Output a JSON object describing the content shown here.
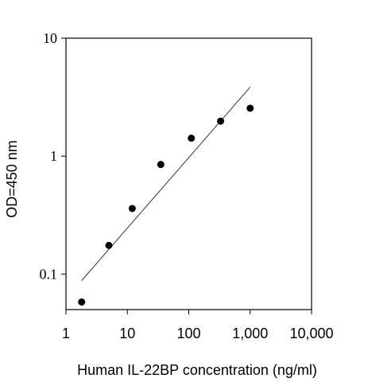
{
  "chart_data": {
    "type": "scatter",
    "title": "",
    "xlabel": "Human IL-22BP concentration (ng/ml)",
    "ylabel": "OD=450 nm",
    "xscale": "log",
    "yscale": "log",
    "xlim": [
      1,
      10000
    ],
    "ylim": [
      0.05,
      10
    ],
    "xticks": [
      1,
      10,
      100,
      1000,
      10000
    ],
    "xtick_labels": [
      "1",
      "10",
      "100",
      "1,000",
      "10,000"
    ],
    "yticks": [
      0.1,
      1,
      10
    ],
    "ytick_labels": [
      "0.1",
      "1",
      "10"
    ],
    "grid": false,
    "legend": "none",
    "series": [
      {
        "x": [
          1.8,
          5.0,
          12,
          35,
          110,
          330,
          1000
        ],
        "y": [
          0.058,
          0.175,
          0.36,
          0.85,
          1.42,
          1.98,
          2.55
        ]
      }
    ],
    "fit_line": {
      "x": [
        1.8,
        1000
      ],
      "y": [
        0.088,
        3.85
      ]
    },
    "colors": {
      "points": "#000000",
      "fit": "#333333",
      "axes": "#000000"
    }
  }
}
